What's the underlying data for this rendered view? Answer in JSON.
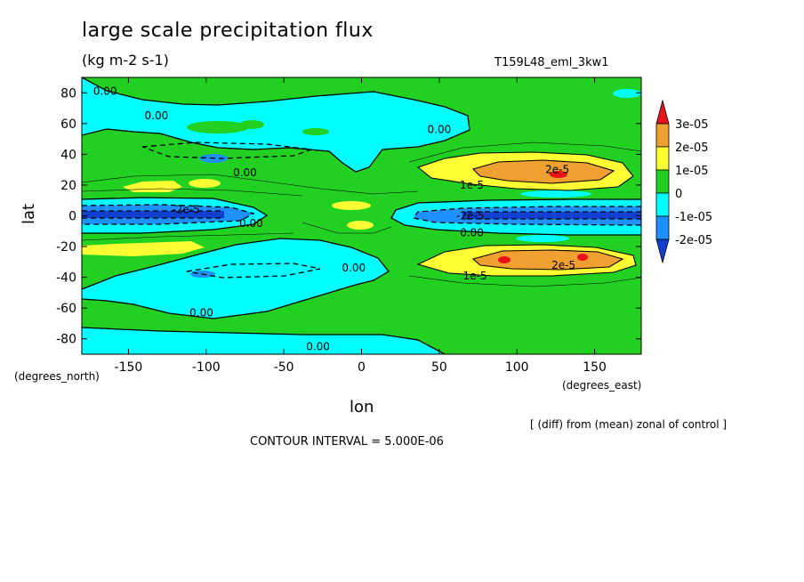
{
  "chart_data": {
    "type": "heatmap",
    "title": "large scale precipitation flux",
    "units": "(kg m-2 s-1)",
    "run_label": "T159L48_eml_3kw1",
    "note": "[ (diff) from (mean) zonal of control ]",
    "contour_interval": "CONTOUR INTERVAL = 5.000E-06",
    "xlabel": "lon",
    "ylabel": "lat",
    "x_unit": "(degrees_east)",
    "y_unit": "(degrees_north)",
    "xlim": [
      -180,
      180
    ],
    "ylim": [
      -90,
      90
    ],
    "x_ticks": [
      "-150",
      "-100",
      "-50",
      "0",
      "50",
      "100",
      "150"
    ],
    "x_tick_values": [
      -150,
      -100,
      -50,
      0,
      50,
      100,
      150
    ],
    "y_ticks": [
      "80",
      "60",
      "40",
      "20",
      "0",
      "-20",
      "-40",
      "-60",
      "-80"
    ],
    "y_tick_values": [
      80,
      60,
      40,
      20,
      0,
      -20,
      -40,
      -60,
      -80
    ],
    "colorbar": {
      "labels": [
        "3e-05",
        "2e-05",
        "1e-05",
        "0",
        "-1e-05",
        "-2e-05"
      ],
      "colors": [
        "#e8141c",
        "#f0a030",
        "#ffff33",
        "#22d022",
        "#00ffff",
        "#1e90ff",
        "#1040d0"
      ]
    },
    "contour_labels": [
      {
        "text": "0.00",
        "lon": -165,
        "lat": 81
      },
      {
        "text": "0.00",
        "lon": -132,
        "lat": 65
      },
      {
        "text": "0.00",
        "lon": 50,
        "lat": 56
      },
      {
        "text": "0.00",
        "lon": -75,
        "lat": 28
      },
      {
        "text": "0.00",
        "lon": -71,
        "lat": -5
      },
      {
        "text": "0.00",
        "lon": 71,
        "lat": -11
      },
      {
        "text": "0.00",
        "lon": -5,
        "lat": -34
      },
      {
        "text": "0.00",
        "lon": -103,
        "lat": -63
      },
      {
        "text": "0.00",
        "lon": -28,
        "lat": -85
      },
      {
        "text": "2e-5",
        "lon": 126,
        "lat": 30
      },
      {
        "text": "1e-5",
        "lon": 71,
        "lat": 20
      },
      {
        "text": "2e-5",
        "lon": 130,
        "lat": -32
      },
      {
        "text": "1e-5",
        "lon": 73,
        "lat": -39
      },
      {
        "text": "-2e-5",
        "lon": -113,
        "lat": 4
      },
      {
        "text": "-2e-5",
        "lon": 70,
        "lat": 0
      }
    ]
  }
}
